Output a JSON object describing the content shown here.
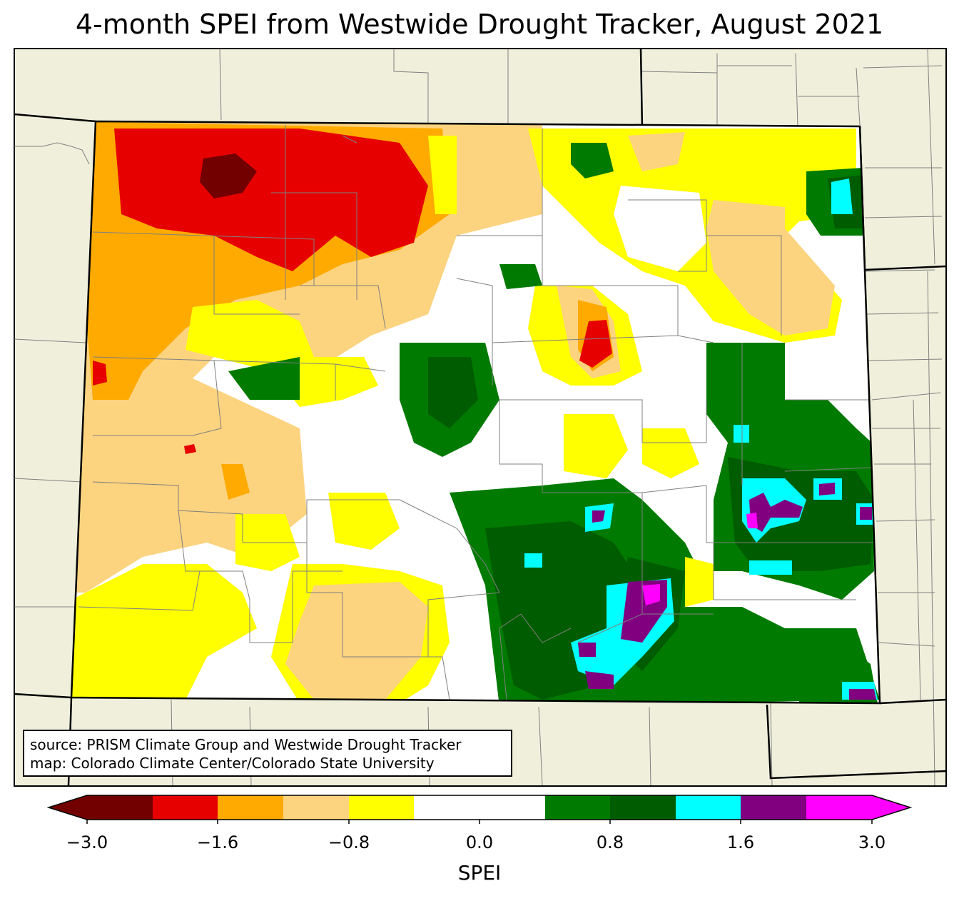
{
  "title": "4-month SPEI from Westwide Drought Tracker, August 2021",
  "source_lines": [
    "source: PRISM Climate Group and Westwide Drought Tracker",
    "map: Colorado Climate Center/Colorado State University"
  ],
  "colorbar": {
    "label": "SPEI",
    "ticks": [
      "−3.0",
      "−1.6",
      "−0.8",
      "0.0",
      "0.8",
      "1.6",
      "3.0"
    ],
    "bins": [
      {
        "range": "< -3.0 to -2.0",
        "color": "#730000"
      },
      {
        "range": "-2.0 to -1.6",
        "color": "#e60000"
      },
      {
        "range": "-1.6 to -1.2",
        "color": "#ffaa00"
      },
      {
        "range": "-1.2 to -0.8",
        "color": "#fcd37f"
      },
      {
        "range": "-0.8 to -0.4",
        "color": "#ffff00"
      },
      {
        "range": "-0.4 to 0.4",
        "color": "#ffffff"
      },
      {
        "range": "0.4 to 0.8",
        "color": "#007a00"
      },
      {
        "range": "0.8 to 1.2",
        "color": "#005c00"
      },
      {
        "range": "1.2 to 1.6",
        "color": "#00ffff"
      },
      {
        "range": "1.6 to 2.0",
        "color": "#800080"
      },
      {
        "range": "2.0 to 3.0+",
        "color": "#ff00ff"
      }
    ]
  },
  "colors": {
    "land_outside": "#efefdc",
    "boundary": "#000000",
    "county_line": "#808080"
  }
}
